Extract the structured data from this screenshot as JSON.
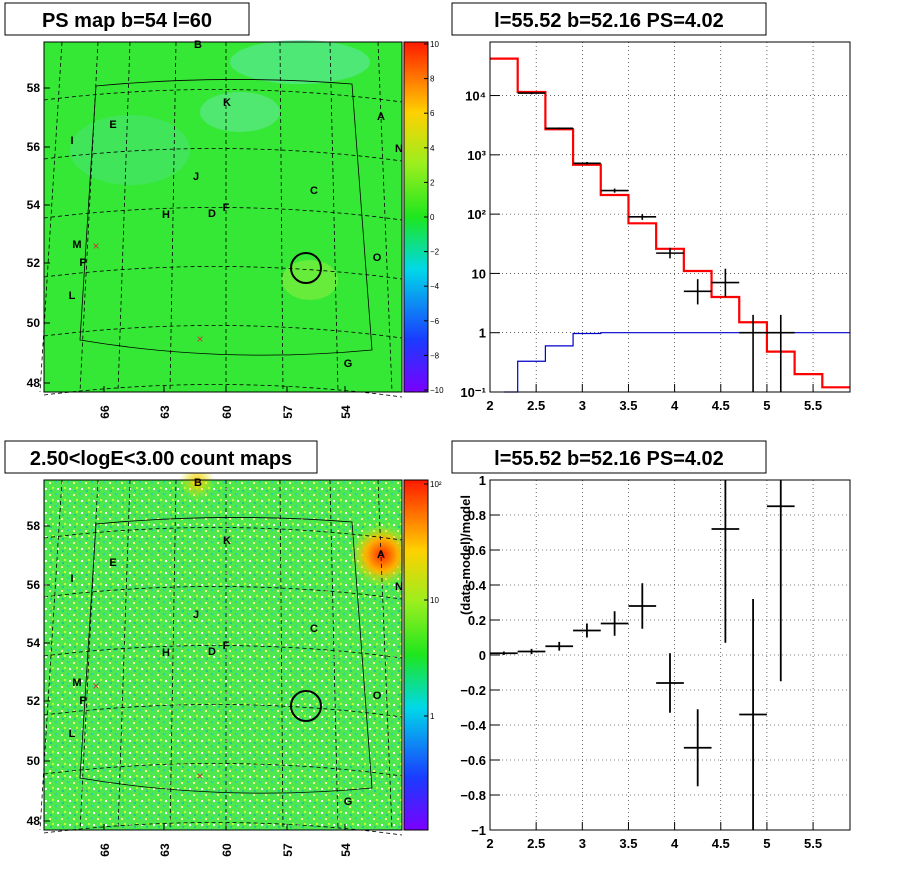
{
  "panels": {
    "tl": {
      "title": "PS map b=54 l=60"
    },
    "tr": {
      "title": "l=55.52 b=52.16 PS=4.02"
    },
    "bl": {
      "title": "2.50<logE<3.00 count maps"
    },
    "br": {
      "title": "l=55.52 b=52.16 PS=4.02",
      "ylabel": "(data-model)/model"
    }
  },
  "map": {
    "xticks": [
      "66",
      "63",
      "60",
      "57",
      "54"
    ],
    "yticks": [
      "58",
      "56",
      "54",
      "52",
      "50",
      "48"
    ],
    "sources": [
      {
        "label": "B"
      },
      {
        "label": "K"
      },
      {
        "label": "A"
      },
      {
        "label": "E"
      },
      {
        "label": "I"
      },
      {
        "label": "N"
      },
      {
        "label": "J"
      },
      {
        "label": "C"
      },
      {
        "label": "H"
      },
      {
        "label": "D"
      },
      {
        "label": "F"
      },
      {
        "label": "M"
      },
      {
        "label": "O"
      },
      {
        "label": "P"
      },
      {
        "label": "L"
      },
      {
        "label": "G"
      }
    ]
  },
  "colorbar_top": {
    "ticks": [
      "10",
      "8",
      "6",
      "4",
      "2",
      "0",
      "−2",
      "−4",
      "−6",
      "−8",
      "−10"
    ]
  },
  "colorbar_bottom": {
    "ticks": [
      "10²",
      "10",
      "1"
    ]
  },
  "colors": {
    "data": "#000000",
    "model": "#ff0000",
    "background_model": "#0000cc",
    "map_green": "#2fe82f"
  },
  "chart_data": [
    {
      "type": "line",
      "yscale": "log",
      "xlim": [
        2,
        5.9
      ],
      "ylim": [
        0.1,
        80000
      ],
      "xticks": [
        "2",
        "2.5",
        "3",
        "3.5",
        "4",
        "4.5",
        "5",
        "5.5"
      ],
      "yticks": [
        "10⁻¹",
        "1",
        "10",
        "10²",
        "10³",
        "10⁴"
      ],
      "grid": true,
      "series": [
        {
          "role": "data",
          "x": [
            2.45,
            2.75,
            3.05,
            3.35,
            3.65,
            3.95,
            4.25,
            4.55,
            4.85,
            5.15
          ],
          "y": [
            11000,
            2800,
            720,
            250,
            90,
            22,
            5,
            7,
            1,
            1
          ],
          "ylo": [
            10500,
            2700,
            680,
            230,
            80,
            18,
            3,
            4,
            0.1,
            0.1
          ],
          "yhi": [
            11500,
            2900,
            760,
            270,
            100,
            27,
            8,
            12,
            2,
            2
          ]
        },
        {
          "role": "model",
          "steps": [
            [
              2,
              2.3,
              42000
            ],
            [
              2.3,
              2.6,
              11500
            ],
            [
              2.6,
              2.9,
              2700
            ],
            [
              2.9,
              3.2,
              680
            ],
            [
              3.2,
              3.5,
              210
            ],
            [
              3.5,
              3.8,
              70
            ],
            [
              3.8,
              4.1,
              26
            ],
            [
              4.1,
              4.4,
              11
            ],
            [
              4.4,
              4.7,
              4
            ],
            [
              4.7,
              5.0,
              1.5
            ],
            [
              5.0,
              5.3,
              0.48
            ],
            [
              5.3,
              5.6,
              0.2
            ],
            [
              5.6,
              5.9,
              0.12
            ]
          ]
        },
        {
          "role": "background",
          "steps": [
            [
              2.15,
              2.3,
              0.1
            ],
            [
              2.3,
              2.6,
              0.33
            ],
            [
              2.6,
              2.9,
              0.6
            ],
            [
              2.9,
              3.2,
              0.97
            ],
            [
              3.2,
              5.9,
              1.0
            ]
          ]
        }
      ]
    },
    {
      "type": "scatter",
      "xlim": [
        2,
        5.9
      ],
      "ylim": [
        -1,
        1
      ],
      "xticks": [
        "2",
        "2.5",
        "3",
        "3.5",
        "4",
        "4.5",
        "5",
        "5.5"
      ],
      "yticks": [
        "1",
        "0.8",
        "0.6",
        "0.4",
        "0.2",
        "0",
        "−0.2",
        "−0.4",
        "−0.6",
        "−0.8",
        "−1"
      ],
      "grid": true,
      "series": [
        {
          "role": "residual",
          "x": [
            2.15,
            2.45,
            2.75,
            3.05,
            3.35,
            3.65,
            3.95,
            4.25,
            4.55,
            4.85,
            5.15
          ],
          "y": [
            0.01,
            0.02,
            0.05,
            0.14,
            0.18,
            0.28,
            -0.16,
            -0.53,
            0.72,
            -0.34,
            0.85
          ],
          "err": [
            0.01,
            0.015,
            0.025,
            0.04,
            0.07,
            0.13,
            0.17,
            0.22,
            0.65,
            0.66,
            1.0
          ]
        }
      ]
    }
  ]
}
